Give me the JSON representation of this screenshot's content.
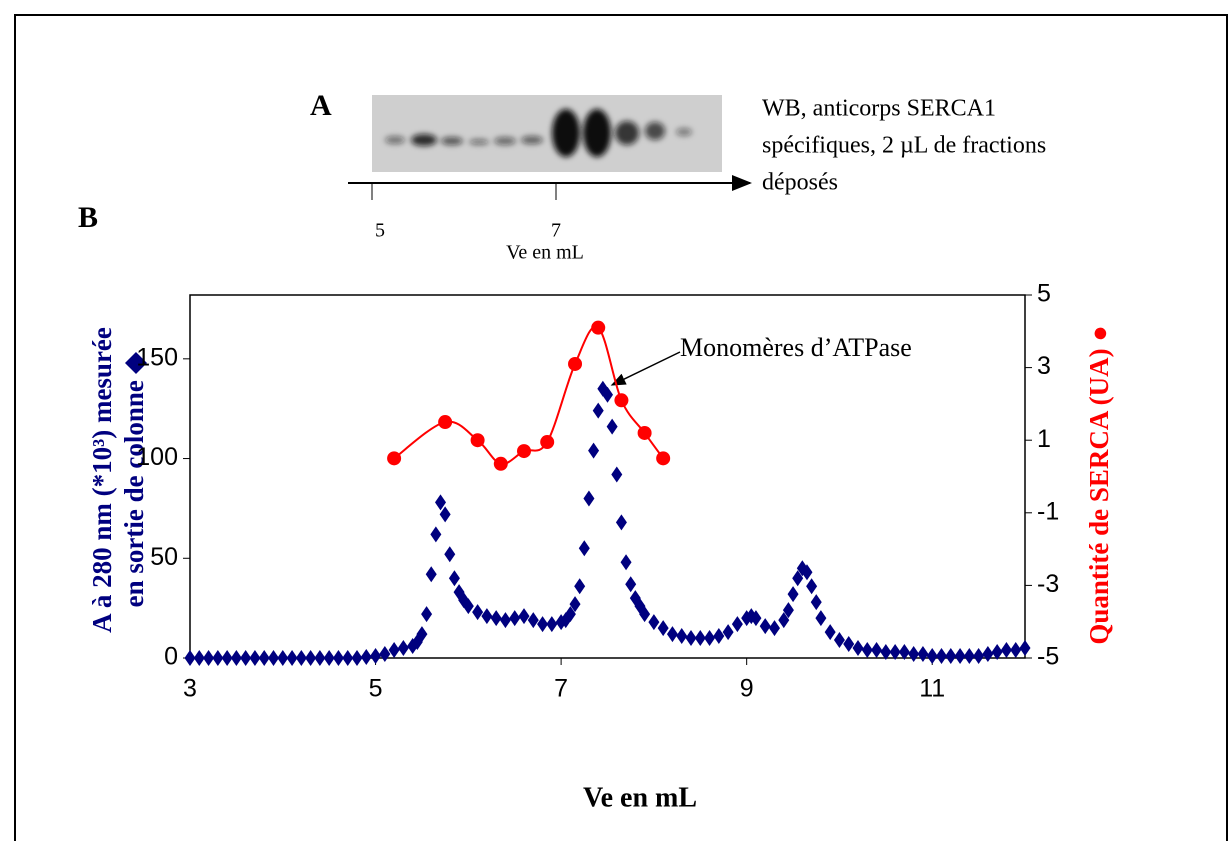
{
  "chart_data": {
    "type": "scatter",
    "panel_a": "A",
    "panel_b": "B",
    "blot_caption": [
      "WB, anticorps SERCA1",
      "spécifiques,  2 µL de fractions",
      "déposés"
    ],
    "blot_ticks": [
      "5",
      "7"
    ],
    "blot_axis_label": "Ve  en mL",
    "annotation": "Monomères d’ATPase",
    "xlabel": "Ve en mL",
    "ylabel": [
      "A à 280 nm (*10³) mesurée",
      "en sortie de colonne ◆"
    ],
    "y2label": "Quantité de SERCA (UA) ●",
    "xlim": [
      3,
      12
    ],
    "xticks": [
      3,
      5,
      7,
      9,
      11
    ],
    "ylim": [
      0,
      182
    ],
    "yticks": [
      0,
      50,
      100,
      150
    ],
    "y2lim": [
      -5,
      5
    ],
    "y2ticks": [
      5,
      3,
      1,
      -1,
      -3,
      -5
    ],
    "series": [
      {
        "color": "#00007f",
        "marker": "diamond",
        "x": [
          3.0,
          3.1,
          3.2,
          3.3,
          3.4,
          3.5,
          3.6,
          3.7,
          3.8,
          3.9,
          4.0,
          4.1,
          4.2,
          4.3,
          4.4,
          4.5,
          4.6,
          4.7,
          4.8,
          4.9,
          5.0,
          5.1,
          5.2,
          5.3,
          5.4,
          5.45,
          5.5,
          5.55,
          5.6,
          5.65,
          5.7,
          5.75,
          5.8,
          5.85,
          5.9,
          5.95,
          6.0,
          6.1,
          6.2,
          6.3,
          6.4,
          6.5,
          6.6,
          6.7,
          6.8,
          6.9,
          7.0,
          7.05,
          7.1,
          7.15,
          7.2,
          7.25,
          7.3,
          7.35,
          7.4,
          7.45,
          7.5,
          7.55,
          7.6,
          7.65,
          7.7,
          7.75,
          7.8,
          7.85,
          7.9,
          8.0,
          8.1,
          8.2,
          8.3,
          8.4,
          8.5,
          8.6,
          8.7,
          8.8,
          8.9,
          9.0,
          9.05,
          9.1,
          9.2,
          9.3,
          9.4,
          9.45,
          9.5,
          9.55,
          9.6,
          9.65,
          9.7,
          9.75,
          9.8,
          9.9,
          10.0,
          10.1,
          10.2,
          10.3,
          10.4,
          10.5,
          10.6,
          10.7,
          10.8,
          10.9,
          11.0,
          11.1,
          11.2,
          11.3,
          11.4,
          11.5,
          11.6,
          11.7,
          11.8,
          11.9,
          12.0
        ],
        "values": [
          0,
          0,
          0,
          0,
          0,
          0,
          0,
          0,
          0,
          0,
          0,
          0,
          0,
          0,
          0,
          0,
          0,
          0,
          0,
          0.5,
          1,
          2,
          4,
          5,
          6,
          8,
          12,
          22,
          42,
          62,
          78,
          72,
          52,
          40,
          33,
          29,
          26,
          23,
          21,
          20,
          19,
          20,
          21,
          19,
          17,
          17,
          18,
          19,
          22,
          27,
          36,
          55,
          80,
          104,
          124,
          135,
          132,
          116,
          92,
          68,
          48,
          37,
          30,
          26,
          22,
          18,
          15,
          12,
          11,
          10,
          10,
          10,
          11,
          13,
          17,
          20,
          21,
          20,
          16,
          15,
          19,
          24,
          32,
          40,
          45,
          43,
          36,
          28,
          20,
          13,
          9,
          7,
          5,
          4,
          4,
          3,
          3,
          3,
          2,
          2,
          1,
          1,
          1,
          1,
          1,
          1,
          2,
          3,
          4,
          4,
          5
        ]
      },
      {
        "color": "#ff0000",
        "marker": "circle",
        "axis": "y2",
        "line": true,
        "x": [
          5.2,
          5.75,
          6.1,
          6.35,
          6.6,
          6.85,
          7.15,
          7.4,
          7.65,
          7.9,
          8.1
        ],
        "values": [
          0.5,
          1.5,
          1.0,
          0.35,
          0.7,
          0.95,
          3.1,
          4.1,
          2.1,
          1.2,
          0.5
        ]
      }
    ]
  }
}
